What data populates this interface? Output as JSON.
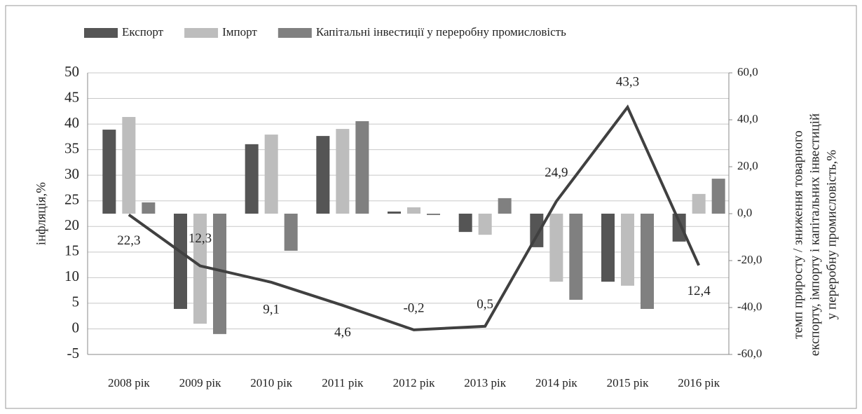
{
  "chart_data": {
    "type": "bar-line",
    "categories": [
      "2008 рік",
      "2009 рік",
      "2010 рік",
      "2011 рік",
      "2012 рік",
      "2013 рік",
      "2014 рік",
      "2015 рік",
      "2016 рік"
    ],
    "series": [
      {
        "name": "Експорт",
        "type": "bar",
        "axis": "y2",
        "color": "#555555",
        "values": [
          35.8,
          -40.6,
          29.6,
          33.1,
          0.9,
          -7.8,
          -14.3,
          -29.0,
          -11.9
        ]
      },
      {
        "name": "Імпорт",
        "type": "bar",
        "axis": "y2",
        "color": "#bdbdbd",
        "values": [
          41.2,
          -46.9,
          33.7,
          36.1,
          2.7,
          -9.0,
          -29.0,
          -30.7,
          8.4
        ]
      },
      {
        "name": "Капітальні інвестиції у переробну промисловість",
        "type": "bar",
        "axis": "y2",
        "color": "#808080",
        "values": [
          4.8,
          -51.3,
          -15.8,
          39.4,
          -0.6,
          6.6,
          -36.7,
          -40.6,
          14.9
        ]
      },
      {
        "name": "Інфляція",
        "type": "line",
        "axis": "y",
        "color": "#404040",
        "values": [
          22.3,
          12.3,
          9.1,
          4.6,
          -0.2,
          0.5,
          24.9,
          43.3,
          12.4
        ],
        "value_labels": [
          "22,3",
          "12,3",
          "9,1",
          "4,6",
          "-0,2",
          "0,5",
          "24,9",
          "43,3",
          "12,4"
        ]
      }
    ],
    "ylabel": "інфляція,%",
    "y2label": [
      "темп приросту / зниження товарного",
      "експорту, імпорту і капітальних інвестицій",
      "у переробну промисловість,%"
    ],
    "ylim": [
      -5,
      50
    ],
    "yticks": [
      -5,
      0,
      5,
      10,
      15,
      20,
      25,
      30,
      35,
      40,
      45,
      50
    ],
    "y2lim": [
      -60,
      60
    ],
    "y2ticks": [
      {
        "value": -60,
        "label": "-60,0"
      },
      {
        "value": -40,
        "label": "-40,0"
      },
      {
        "value": -20,
        "label": "-20,0"
      },
      {
        "value": 0,
        "label": "0,0"
      },
      {
        "value": 20,
        "label": "20,0"
      },
      {
        "value": 40,
        "label": "40,0"
      },
      {
        "value": 60,
        "label": "60,0"
      }
    ],
    "grid": true,
    "legend": "top"
  }
}
